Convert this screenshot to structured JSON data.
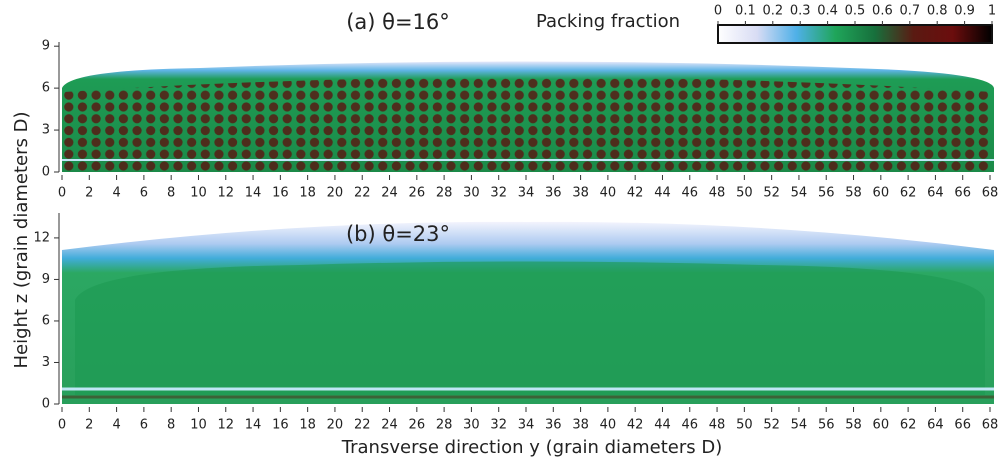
{
  "chart_data": [
    {
      "type": "heatmap",
      "title": "(a) θ=16°",
      "xlim": [
        0,
        68
      ],
      "xticks": [
        0,
        2,
        4,
        6,
        8,
        10,
        12,
        14,
        16,
        18,
        20,
        22,
        24,
        26,
        28,
        30,
        32,
        34,
        36,
        38,
        40,
        42,
        44,
        46,
        48,
        50,
        52,
        54,
        56,
        58,
        60,
        62,
        64,
        66,
        68
      ],
      "ylim": [
        0,
        9.3
      ],
      "yticks": [
        0,
        3,
        6,
        9
      ]
    },
    {
      "type": "heatmap",
      "title": "(b) θ=23°",
      "xlim": [
        0,
        68
      ],
      "xticks": [
        0,
        2,
        4,
        6,
        8,
        10,
        12,
        14,
        16,
        18,
        20,
        22,
        24,
        26,
        28,
        30,
        32,
        34,
        36,
        38,
        40,
        42,
        44,
        46,
        48,
        50,
        52,
        54,
        56,
        58,
        60,
        62,
        64,
        66,
        68
      ],
      "ylim": [
        0,
        13.8
      ],
      "yticks": [
        0,
        3,
        6,
        9,
        12
      ],
      "x_label": "Transverse direction y (grain diameters D)"
    }
  ],
  "y_label": "Height z (grain diameters D)",
  "colorbar": {
    "label": "Packing fraction",
    "lim": [
      0,
      1
    ],
    "ticks": [
      0,
      0.1,
      0.2,
      0.3,
      0.4,
      0.5,
      0.6,
      0.7,
      0.8,
      0.9,
      1
    ],
    "colormap": [
      "#ffffff",
      "#d8dcf4",
      "#4fb0e8",
      "#1fa55a",
      "#17703c",
      "#5a1a12",
      "#6b0d0d",
      "#000000"
    ]
  }
}
